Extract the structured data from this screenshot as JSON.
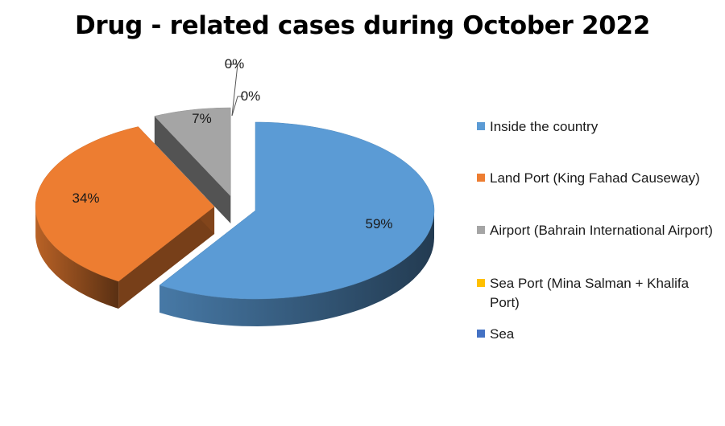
{
  "chart_data": {
    "type": "pie",
    "title": "Drug - related cases during October 2022",
    "legend_position": "right",
    "slices": [
      {
        "name": "Inside the country",
        "value": 59,
        "label": "59%",
        "color": "#5B9BD5"
      },
      {
        "name": "Land Port (King Fahad Causeway)",
        "value": 34,
        "label": "34%",
        "color": "#ED7D31"
      },
      {
        "name": "Airport (Bahrain International Airport)",
        "value": 7,
        "label": "7%",
        "color": "#A5A5A5"
      },
      {
        "name": "Sea Port (Mina Salman + Khalifa Port)",
        "value": 0,
        "label": "0%",
        "color": "#FFC000"
      },
      {
        "name": "Sea",
        "value": 0,
        "label": "0%",
        "color": "#4472C4"
      }
    ]
  }
}
